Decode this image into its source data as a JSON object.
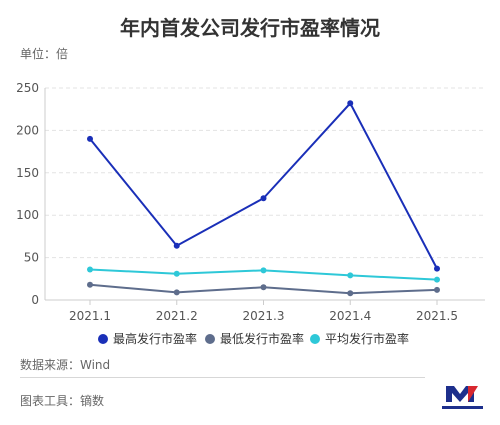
{
  "header": {
    "title": "年内首发公司发行市盈率情况",
    "unit_label": "单位：倍"
  },
  "footer": {
    "source": "数据来源：Wind",
    "tool": "图表工具：镝数"
  },
  "chart_data": {
    "type": "line",
    "title": "年内首发公司发行市盈率情况",
    "categories": [
      "2021.1",
      "2021.2",
      "2021.3",
      "2021.4",
      "2021.5"
    ],
    "ylim": [
      0,
      250
    ],
    "yticks": [
      0,
      50,
      100,
      150,
      200,
      250
    ],
    "grid": true,
    "legend_position": "bottom",
    "series": [
      {
        "name": "最高发行市盈率",
        "color": "#1a2fb8",
        "values": [
          190,
          64,
          120,
          232,
          37
        ]
      },
      {
        "name": "最低发行市盈率",
        "color": "#5e6d8c",
        "values": [
          18,
          9,
          15,
          8,
          12
        ]
      },
      {
        "name": "平均发行市盈率",
        "color": "#2ec8d8",
        "values": [
          36,
          31,
          35,
          29,
          24
        ]
      }
    ]
  }
}
